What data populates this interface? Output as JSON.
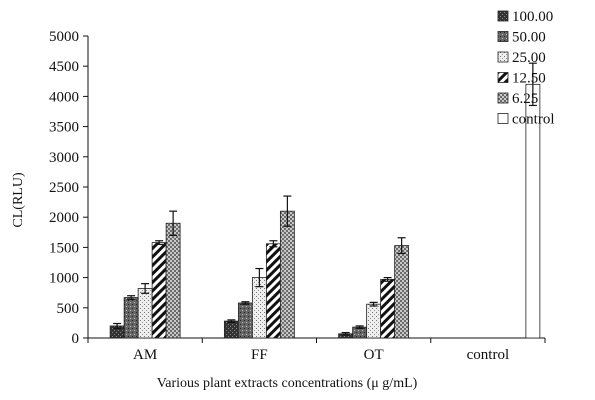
{
  "chart_data": {
    "type": "bar",
    "categories": [
      "AM",
      "FF",
      "OT",
      "control"
    ],
    "series": [
      {
        "name": "100.00",
        "values": [
          200,
          280,
          70,
          null
        ],
        "errors": [
          40,
          20,
          20,
          null
        ],
        "pattern": "pat-dark"
      },
      {
        "name": "50.00",
        "values": [
          670,
          580,
          180,
          null
        ],
        "errors": [
          30,
          20,
          20,
          null
        ],
        "pattern": "pat-mid"
      },
      {
        "name": "25.00",
        "values": [
          820,
          1000,
          560,
          null
        ],
        "errors": [
          80,
          150,
          30,
          null
        ],
        "pattern": "pat-light"
      },
      {
        "name": "12.50",
        "values": [
          1580,
          1560,
          970,
          null
        ],
        "errors": [
          30,
          50,
          30,
          null
        ],
        "pattern": "pat-diag"
      },
      {
        "name": "6.25",
        "values": [
          1900,
          2100,
          1530,
          null
        ],
        "errors": [
          200,
          250,
          130,
          null
        ],
        "pattern": "pat-check"
      },
      {
        "name": "control",
        "values": [
          null,
          null,
          null,
          4200
        ],
        "errors": [
          null,
          null,
          null,
          350
        ],
        "pattern": "pat-white"
      }
    ],
    "xlabel": "Various plant extracts concentrations (μ g/mL)",
    "ylabel": "CL(RLU)",
    "ylim": [
      0,
      5000
    ],
    "yticks": [
      0,
      500,
      1000,
      1500,
      2000,
      2500,
      3000,
      3500,
      4000,
      4500,
      5000
    ],
    "grid": false,
    "legend_position": "right"
  }
}
